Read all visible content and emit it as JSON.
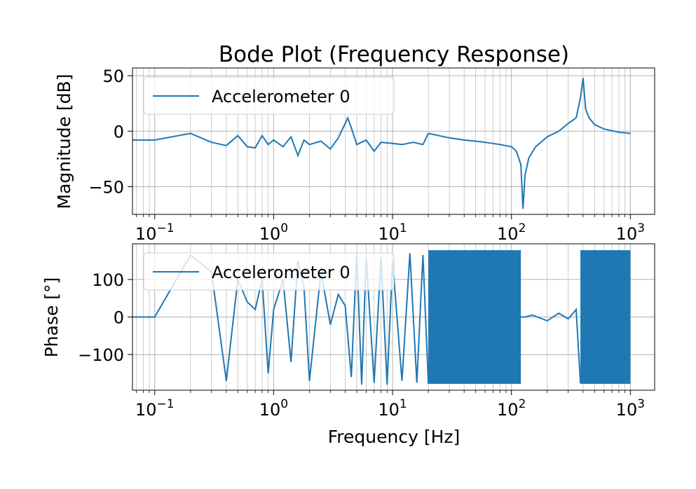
{
  "chart_data": [
    {
      "type": "line",
      "title": "Bode Plot (Frequency Response)",
      "xlabel": "",
      "ylabel": "Magnitude [dB]",
      "xscale": "log",
      "xlim": [
        0.065,
        1600
      ],
      "ylim": [
        -75,
        57
      ],
      "grid": "on (major and minor)",
      "legend_position": "top-left",
      "yticks": [
        50,
        0,
        -50
      ],
      "ytick_labels": [
        "50",
        "0",
        "−50"
      ],
      "xticks": [
        0.1,
        1,
        10,
        100,
        1000
      ],
      "xtick_labels": [
        [
          "10",
          "−1"
        ],
        [
          "10",
          "0"
        ],
        [
          "10",
          "1"
        ],
        [
          "10",
          "2"
        ],
        [
          "10",
          "3"
        ]
      ],
      "series": [
        {
          "name": "Accelerometer 0",
          "color": "#1f77b4",
          "x": [
            0.06,
            0.1,
            0.2,
            0.3,
            0.4,
            0.5,
            0.6,
            0.7,
            0.8,
            0.9,
            1.0,
            1.2,
            1.4,
            1.6,
            1.8,
            2.0,
            2.5,
            3.0,
            3.5,
            4.0,
            4.2,
            4.5,
            5.0,
            6.0,
            7.0,
            8.0,
            10,
            12,
            15,
            18,
            20,
            30,
            40,
            50,
            60,
            80,
            100,
            110,
            120,
            125,
            130,
            140,
            160,
            200,
            250,
            300,
            350,
            380,
            400,
            420,
            450,
            500,
            600,
            800,
            1000
          ],
          "y": [
            -8,
            -8,
            -2,
            -10,
            -13,
            -4,
            -14,
            -15,
            -4,
            -12,
            -8,
            -14,
            -5,
            -22,
            -8,
            -12,
            -9,
            -16,
            -6,
            7,
            12,
            3,
            -12,
            -8,
            -18,
            -10,
            -11,
            -12,
            -10,
            -12,
            -2,
            -6,
            -8,
            -9,
            -10,
            -12,
            -14,
            -18,
            -30,
            -70,
            -40,
            -24,
            -14,
            -5,
            0,
            7,
            12,
            30,
            48,
            20,
            12,
            6,
            2,
            -1,
            -2
          ]
        }
      ]
    },
    {
      "type": "line",
      "title": "",
      "xlabel": "Frequency [Hz]",
      "ylabel": "Phase [°]",
      "xscale": "log",
      "xlim": [
        0.065,
        1600
      ],
      "ylim": [
        -195,
        195
      ],
      "grid": "on (major and minor)",
      "legend_position": "top-left",
      "yticks": [
        100,
        0,
        -100
      ],
      "ytick_labels": [
        "100",
        "0",
        "−100"
      ],
      "xticks": [
        0.1,
        1,
        10,
        100,
        1000
      ],
      "xtick_labels": [
        [
          "10",
          "−1"
        ],
        [
          "10",
          "0"
        ],
        [
          "10",
          "1"
        ],
        [
          "10",
          "2"
        ],
        [
          "10",
          "3"
        ]
      ],
      "note_dense_bands_hz": [
        [
          20,
          120
        ],
        [
          380,
          1000
        ]
      ],
      "series": [
        {
          "name": "Accelerometer 0",
          "color": "#1f77b4",
          "x": [
            0.06,
            0.1,
            0.2,
            0.3,
            0.4,
            0.5,
            0.6,
            0.7,
            0.8,
            0.9,
            1.0,
            1.2,
            1.4,
            1.6,
            1.8,
            2.0,
            2.5,
            3.0,
            3.5,
            4.0,
            4.5,
            5.0,
            5.5,
            6.0,
            7.0,
            8.0,
            9.0,
            10,
            12,
            14,
            16,
            18,
            20,
            120,
            130,
            150,
            200,
            250,
            300,
            350,
            380,
            1000
          ],
          "y": [
            0,
            0,
            165,
            120,
            -170,
            100,
            40,
            20,
            100,
            -150,
            20,
            100,
            -120,
            150,
            80,
            -170,
            120,
            -20,
            60,
            30,
            -160,
            170,
            -180,
            160,
            -175,
            160,
            -180,
            150,
            -170,
            170,
            -175,
            165,
            -175,
            0,
            0,
            5,
            -10,
            10,
            -5,
            20,
            -175,
            -175
          ]
        }
      ]
    }
  ]
}
